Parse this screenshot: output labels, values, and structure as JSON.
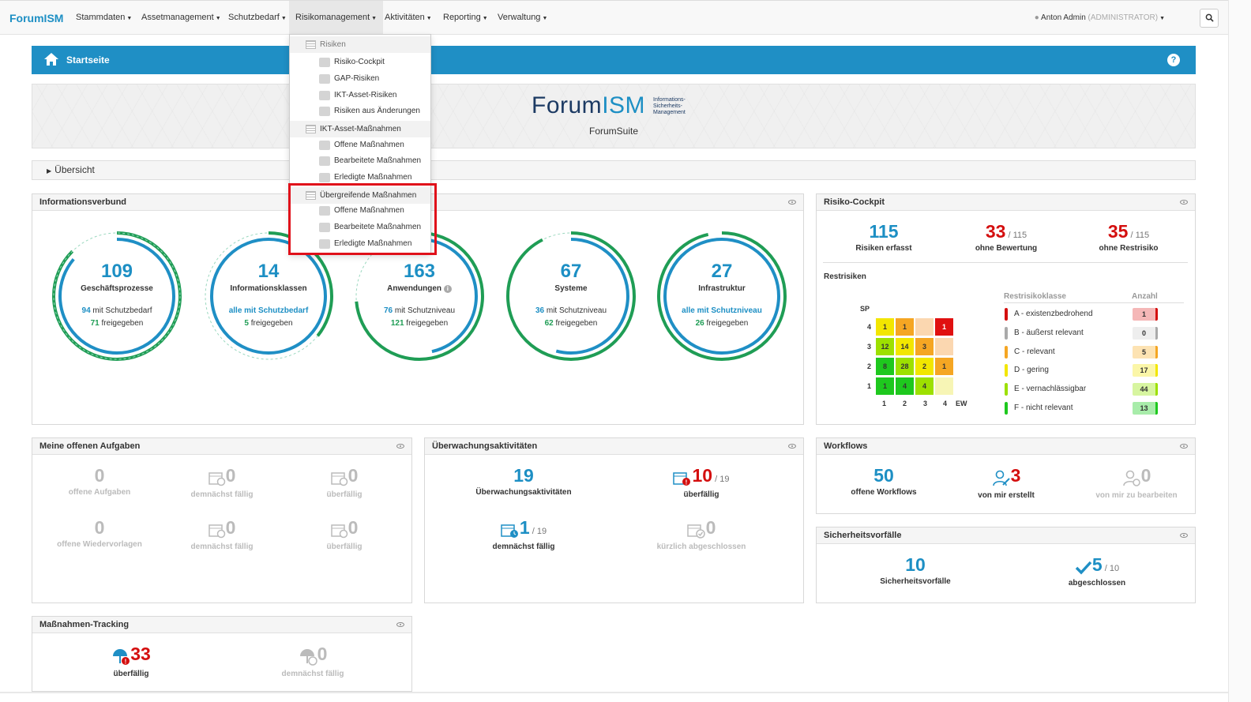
{
  "nav": {
    "brand": "ForumISM",
    "items": [
      "Stammdaten",
      "Assetmanagement",
      "Schutzbedarf",
      "Risikomanagement",
      "Aktivitäten",
      "Reporting",
      "Verwaltung"
    ],
    "user": "Anton Admin",
    "role": "(ADMINISTRATOR)"
  },
  "page": {
    "title": "Startseite",
    "help": "?",
    "logo_main": "Forum",
    "logo_accent": "ISM",
    "logo_sub1": "Informations-",
    "logo_sub2": "Sicherheits-",
    "logo_sub3": "Management",
    "suite": "ForumSuite",
    "overview": "Übersicht"
  },
  "dropdown": {
    "sections": [
      {
        "title": "Risiken",
        "items": [
          "Risiko-Cockpit",
          "GAP-Risiken",
          "IKT-Asset-Risiken",
          "Risiken aus Änderungen"
        ]
      },
      {
        "title": "IKT-Asset-Maßnahmen",
        "items": [
          "Offene Maßnahmen",
          "Bearbeitete Maßnahmen",
          "Erledigte Maßnahmen"
        ]
      },
      {
        "title": "Übergreifende Maßnahmen",
        "items": [
          "Offene Maßnahmen",
          "Bearbeitete Maßnahmen",
          "Erledigte Maßnahmen"
        ]
      }
    ]
  },
  "infoverbund": {
    "title": "Informationsverbund",
    "circles": [
      {
        "num": "109",
        "label": "Geschäftsprozesse",
        "l1a": "94",
        "l1b": " mit Schutzbedarf",
        "l2a": "71",
        "l2b": " freigegeben"
      },
      {
        "num": "14",
        "label": "Informationsklassen",
        "l1a": "alle mit Schutzbedarf",
        "l1b": "",
        "l2a": "5",
        "l2b": " freigegeben"
      },
      {
        "num": "163",
        "label": "Anwendungen",
        "l1a": "76",
        "l1b": " mit Schutzniveau",
        "l2a": "121",
        "l2b": " freigegeben"
      },
      {
        "num": "67",
        "label": "Systeme",
        "l1a": "36",
        "l1b": " mit Schutzniveau",
        "l2a": "62",
        "l2b": " freigegeben"
      },
      {
        "num": "27",
        "label": "Infrastruktur",
        "l1a": "alle mit Schutzniveau",
        "l1b": "",
        "l2a": "26",
        "l2b": " freigegeben"
      }
    ]
  },
  "cockpit": {
    "title": "Risiko-Cockpit",
    "erfasst": "115",
    "erfasst_lbl": "Risiken erfasst",
    "ohne_bew": "33",
    "ohne_bew_total": "/ 115",
    "ohne_bew_lbl": "ohne Bewertung",
    "ohne_rest": "35",
    "ohne_rest_total": "/ 115",
    "ohne_rest_lbl": "ohne Restrisiko",
    "restrisiken": "Restrisiken",
    "sp": "SP",
    "ew": "EW",
    "rows": [
      "4",
      "3",
      "2",
      "1"
    ],
    "cols": [
      "1",
      "2",
      "3",
      "4"
    ],
    "matrix": [
      [
        "1",
        "1",
        "",
        "1"
      ],
      [
        "12",
        "14",
        "3",
        ""
      ],
      [
        "8",
        "28",
        "2",
        "1"
      ],
      [
        "1",
        "4",
        "4",
        ""
      ]
    ],
    "class_head": "Restrisikoklasse",
    "count_head": "Anzahl",
    "classes": [
      {
        "name": "A - existenzbedrohend",
        "count": "1",
        "color": "#d40f0f",
        "bg": "#f5b7b7"
      },
      {
        "name": "B - äußerst relevant",
        "count": "0",
        "color": "#aaaaaa",
        "bg": "#eeeeee"
      },
      {
        "name": "C - relevant",
        "count": "5",
        "color": "#f5a623",
        "bg": "#fde3b3"
      },
      {
        "name": "D - gering",
        "count": "17",
        "color": "#f2e600",
        "bg": "#fbf6a8"
      },
      {
        "name": "E - vernachlässigbar",
        "count": "44",
        "color": "#9de000",
        "bg": "#d7f5a0"
      },
      {
        "name": "F - nicht relevant",
        "count": "13",
        "color": "#1ec81e",
        "bg": "#a8ecaa"
      }
    ]
  },
  "aufgaben": {
    "title": "Meine offenen Aufgaben",
    "items": [
      {
        "num": "0",
        "lbl": "offene Aufgaben"
      },
      {
        "num": "0",
        "lbl": "demnächst fällig"
      },
      {
        "num": "0",
        "lbl": "überfällig"
      },
      {
        "num": "0",
        "lbl": "offene Wiedervorlagen"
      },
      {
        "num": "0",
        "lbl": "demnächst fällig"
      },
      {
        "num": "0",
        "lbl": "überfällig"
      }
    ]
  },
  "ueberwachung": {
    "title": "Überwachungsaktivitäten",
    "total": "19",
    "total_lbl": "Überwachungsaktivitäten",
    "ueberf": "10",
    "ueberf_total": "/ 19",
    "ueberf_lbl": "überfällig",
    "demn": "1",
    "demn_total": "/ 19",
    "demn_lbl": "demnächst fällig",
    "abg": "0",
    "abg_lbl": "kürzlich abgeschlossen"
  },
  "workflows": {
    "title": "Workflows",
    "offen": "50",
    "offen_lbl": "offene Workflows",
    "erstellt": "3",
    "erstellt_lbl": "von mir erstellt",
    "bearb": "0",
    "bearb_lbl": "von mir zu bearbeiten"
  },
  "vorfaelle": {
    "title": "Sicherheitsvorfälle",
    "total": "10",
    "total_lbl": "Sicherheitsvorfälle",
    "abg": "5",
    "abg_total": "/ 10",
    "abg_lbl": "abgeschlossen"
  },
  "tracking": {
    "title": "Maßnahmen-Tracking",
    "ueberf": "33",
    "ueberf_lbl": "überfällig",
    "demn": "0",
    "demn_lbl": "demnächst fällig"
  },
  "colors": {
    "primary": "#1f8fc5",
    "red": "#d40f0f",
    "green": "#1f9d55"
  }
}
